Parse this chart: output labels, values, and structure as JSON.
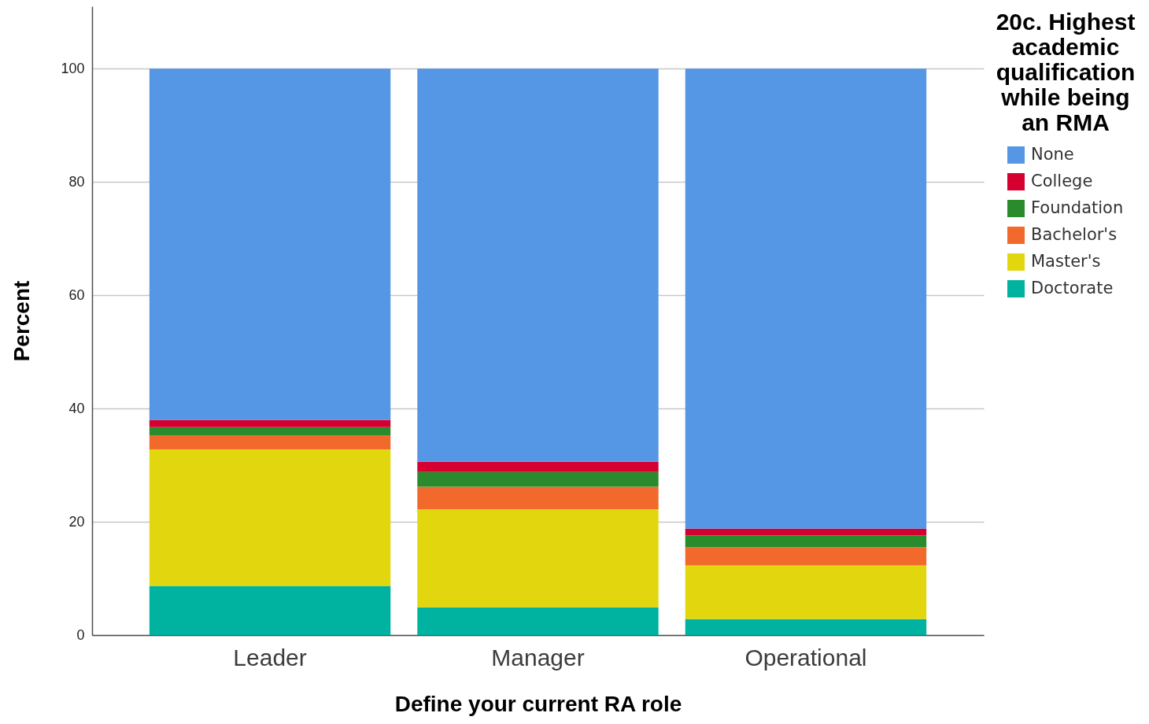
{
  "chart_data": {
    "type": "bar",
    "stacked": true,
    "xlabel": "Define your current RA role",
    "ylabel": "Percent",
    "legend_title": "20c. Highest academic qualification while being an RMA",
    "categories": [
      "Leader",
      "Manager",
      "Operational"
    ],
    "series": [
      {
        "name": "Doctorate",
        "color": "#00b2a0",
        "values": [
          8.7,
          4.9,
          2.8
        ]
      },
      {
        "name": "Master's",
        "color": "#e2d70f",
        "values": [
          24.1,
          17.3,
          9.5
        ]
      },
      {
        "name": "Bachelor's",
        "color": "#f2692c",
        "values": [
          2.5,
          4.0,
          3.2
        ]
      },
      {
        "name": "Foundation",
        "color": "#298b2b",
        "values": [
          1.4,
          2.6,
          2.1
        ]
      },
      {
        "name": "College",
        "color": "#d5002f",
        "values": [
          1.3,
          1.8,
          1.2
        ]
      },
      {
        "name": "None",
        "color": "#5596e5",
        "values": [
          62.0,
          69.4,
          81.2
        ]
      }
    ],
    "ylim": [
      0,
      111
    ],
    "yticks": [
      0,
      20,
      40,
      60,
      80,
      100
    ],
    "grid": "y",
    "legend": "top right"
  }
}
